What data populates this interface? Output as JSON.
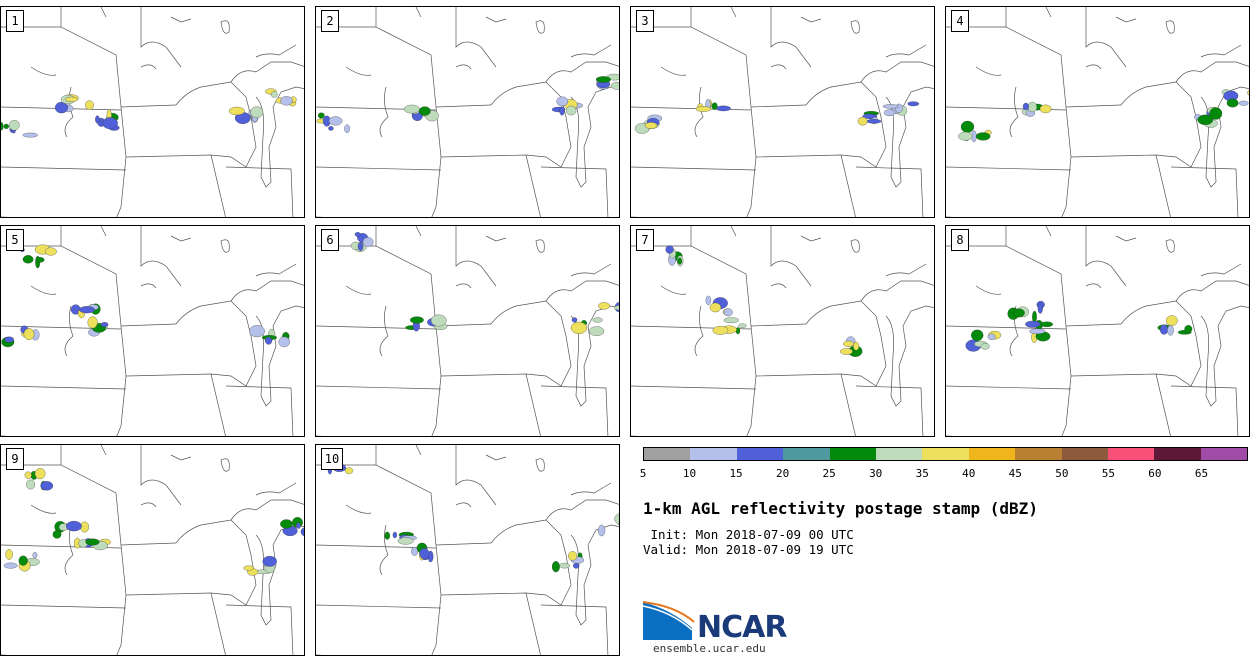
{
  "panels": [
    {
      "label": "1"
    },
    {
      "label": "2"
    },
    {
      "label": "3"
    },
    {
      "label": "4"
    },
    {
      "label": "5"
    },
    {
      "label": "6"
    },
    {
      "label": "7"
    },
    {
      "label": "8"
    },
    {
      "label": "9"
    },
    {
      "label": "10"
    }
  ],
  "colorbar": {
    "ticks": [
      "5",
      "10",
      "15",
      "20",
      "25",
      "30",
      "35",
      "40",
      "45",
      "50",
      "55",
      "60",
      "65"
    ],
    "colors": [
      "#a0a0a0",
      "#b4c0ea",
      "#5060d8",
      "#4f9a9e",
      "#048a0a",
      "#bedcbc",
      "#ece05c",
      "#f0b41c",
      "#b88030",
      "#8e5a3e",
      "#f85078",
      "#5e1838",
      "#a04ca6"
    ]
  },
  "title": "1-km AGL reflectivity postage stamp (dBZ)",
  "init_text": " Init: Mon 2018-07-09 00 UTC",
  "valid_text": "Valid: Mon 2018-07-09 19 UTC",
  "logo": {
    "text": "NCAR",
    "url": "ensemble.ucar.edu"
  }
}
